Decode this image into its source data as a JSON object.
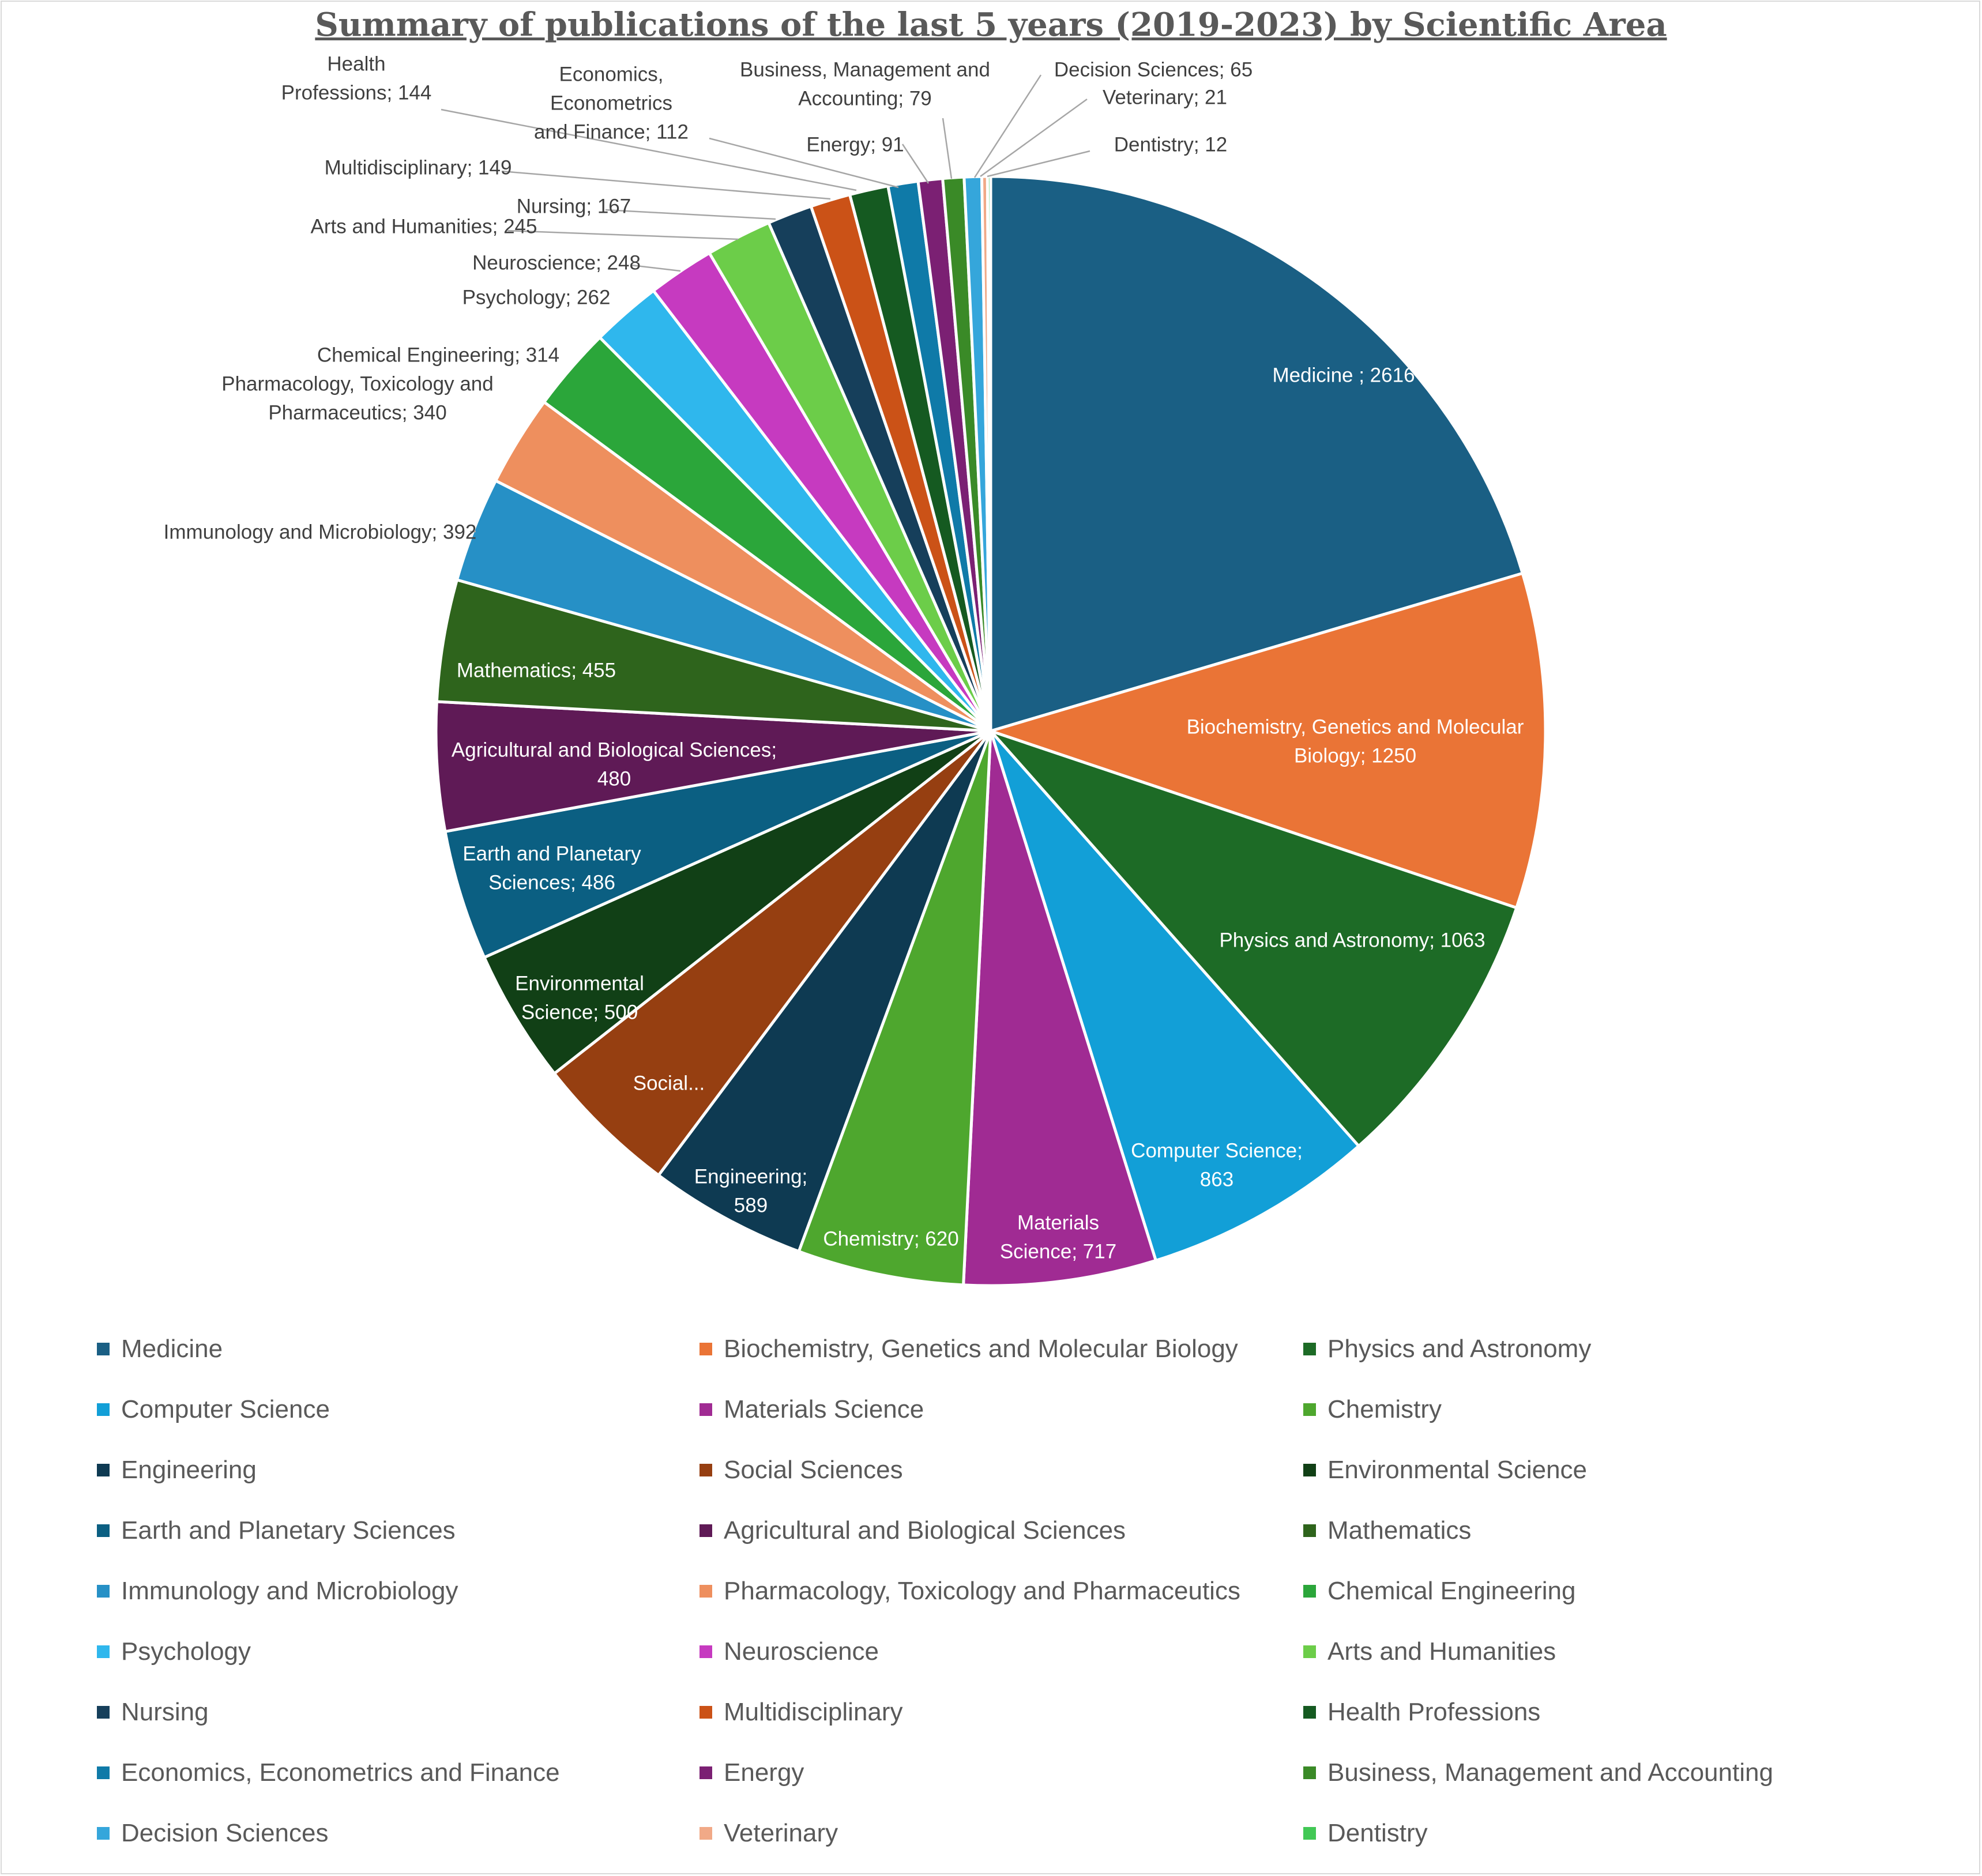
{
  "chart_data": {
    "type": "pie",
    "title": "Summary of publications of the last 5 years (2019-2023) by Scientific Area",
    "legend_position": "bottom",
    "slices": [
      {
        "name": "Medicine",
        "value": 2616,
        "label": "Medicine ; 2616",
        "color": "#1a5f84"
      },
      {
        "name": "Biochemistry, Genetics and Molecular Biology",
        "value": 1250,
        "label": "Biochemistry, Genetics and Molecular Biology; 1250",
        "color": "#ea7436"
      },
      {
        "name": "Physics and Astronomy",
        "value": 1063,
        "label": "Physics and Astronomy; 1063",
        "color": "#1d6b26"
      },
      {
        "name": "Computer Science",
        "value": 863,
        "label": "Computer Science; 863",
        "color": "#129fd7"
      },
      {
        "name": "Materials Science",
        "value": 717,
        "label": "Materials Science; 717",
        "color": "#a02b93"
      },
      {
        "name": "Chemistry",
        "value": 620,
        "label": "Chemistry; 620",
        "color": "#4ea72e"
      },
      {
        "name": "Engineering",
        "value": 589,
        "label": "Engineering; 589",
        "color": "#0e3a52"
      },
      {
        "name": "Social Sciences",
        "value": 537,
        "label": "Social...",
        "color": "#963f11"
      },
      {
        "name": "Environmental Science",
        "value": 500,
        "label": "Environmental Science; 500",
        "color": "#114016"
      },
      {
        "name": "Earth and Planetary Sciences",
        "value": 486,
        "label": "Earth and Planetary Sciences; 486",
        "color": "#0b5f82"
      },
      {
        "name": "Agricultural and Biological Sciences",
        "value": 480,
        "label": "Agricultural and Biological Sciences; 480",
        "color": "#5f1a56"
      },
      {
        "name": "Mathematics",
        "value": 455,
        "label": "Mathematics; 455",
        "color": "#2e641c"
      },
      {
        "name": "Immunology and Microbiology",
        "value": 392,
        "label": "Immunology and Microbiology; 392",
        "color": "#2690c6"
      },
      {
        "name": "Pharmacology, Toxicology and Pharmaceutics",
        "value": 340,
        "label": "Pharmacology, Toxicology and Pharmaceutics; 340",
        "color": "#ee8f5e"
      },
      {
        "name": "Chemical Engineering",
        "value": 314,
        "label": "Chemical Engineering; 314",
        "color": "#2ba63a"
      },
      {
        "name": "Psychology",
        "value": 262,
        "label": "Psychology; 262",
        "color": "#2fb7ed"
      },
      {
        "name": "Neuroscience",
        "value": 248,
        "label": "Neuroscience; 248",
        "color": "#c63ac0"
      },
      {
        "name": "Arts and Humanities",
        "value": 245,
        "label": "Arts and Humanities; 245",
        "color": "#6ccd49"
      },
      {
        "name": "Nursing",
        "value": 167,
        "label": "Nursing; 167",
        "color": "#163f5b"
      },
      {
        "name": "Multidisciplinary",
        "value": 149,
        "label": "Multidisciplinary; 149",
        "color": "#cb5217"
      },
      {
        "name": "Health Professions",
        "value": 144,
        "label": "Health Professions; 144",
        "color": "#155a21"
      },
      {
        "name": "Economics, Econometrics and Finance",
        "value": 112,
        "label": "Economics, Econometrics and Finance; 112",
        "color": "#0f7aa8"
      },
      {
        "name": "Energy",
        "value": 91,
        "label": "Energy; 91",
        "color": "#7b2073"
      },
      {
        "name": "Business, Management and Accounting",
        "value": 79,
        "label": "Business, Management and Accounting; 79",
        "color": "#3a8a27"
      },
      {
        "name": "Decision Sciences",
        "value": 65,
        "label": "Decision Sciences; 65",
        "color": "#35a6db"
      },
      {
        "name": "Veterinary",
        "value": 21,
        "label": "Veterinary; 21",
        "color": "#f1a987"
      },
      {
        "name": "Dentistry",
        "value": 12,
        "label": "Dentistry; 12",
        "color": "#42c855"
      }
    ]
  }
}
